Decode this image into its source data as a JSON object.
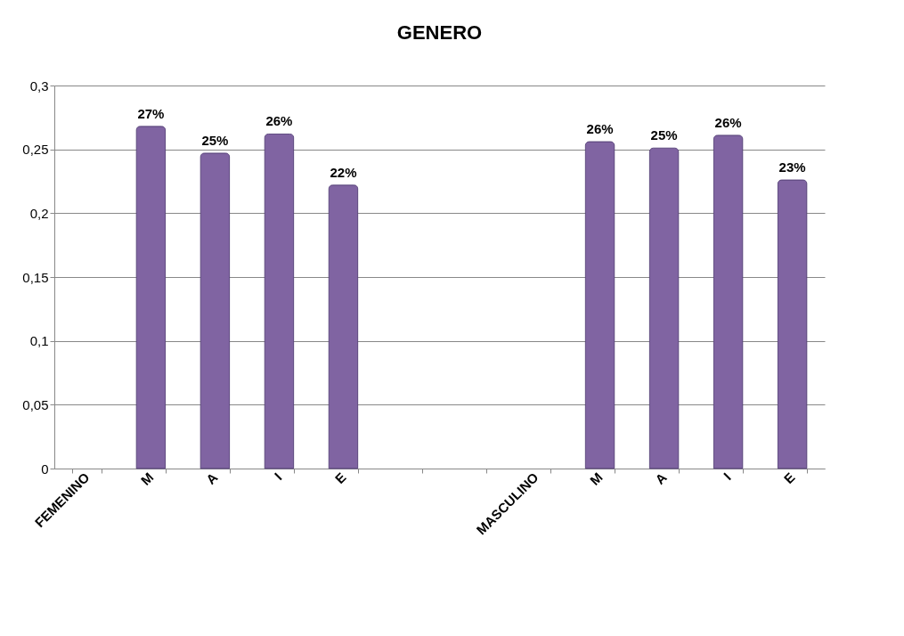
{
  "chart_data": {
    "type": "bar",
    "title": "GENERO",
    "categories": [
      "FEMENINO",
      "M",
      "A",
      "I",
      "E",
      null,
      null,
      "MASCULINO",
      "M",
      "A",
      "I",
      "E"
    ],
    "values": [
      null,
      0.268,
      0.247,
      0.262,
      0.222,
      null,
      null,
      null,
      0.256,
      0.251,
      0.261,
      0.226
    ],
    "value_labels": [
      null,
      "27%",
      "25%",
      "26%",
      "22%",
      null,
      null,
      null,
      "26%",
      "25%",
      "26%",
      "23%"
    ],
    "color": "#8064a2",
    "ylim": [
      0,
      0.3
    ],
    "yticks": [
      0,
      {
        "value": 0.05,
        "label": "0,05"
      },
      {
        "value": 0.1,
        "label": "0,1"
      },
      {
        "value": 0.15,
        "label": "0,15"
      },
      {
        "value": 0.2,
        "label": "0,2"
      },
      {
        "value": 0.25,
        "label": "0,25"
      },
      {
        "value": 0.3,
        "label": "0,3"
      }
    ],
    "grid": "y"
  }
}
